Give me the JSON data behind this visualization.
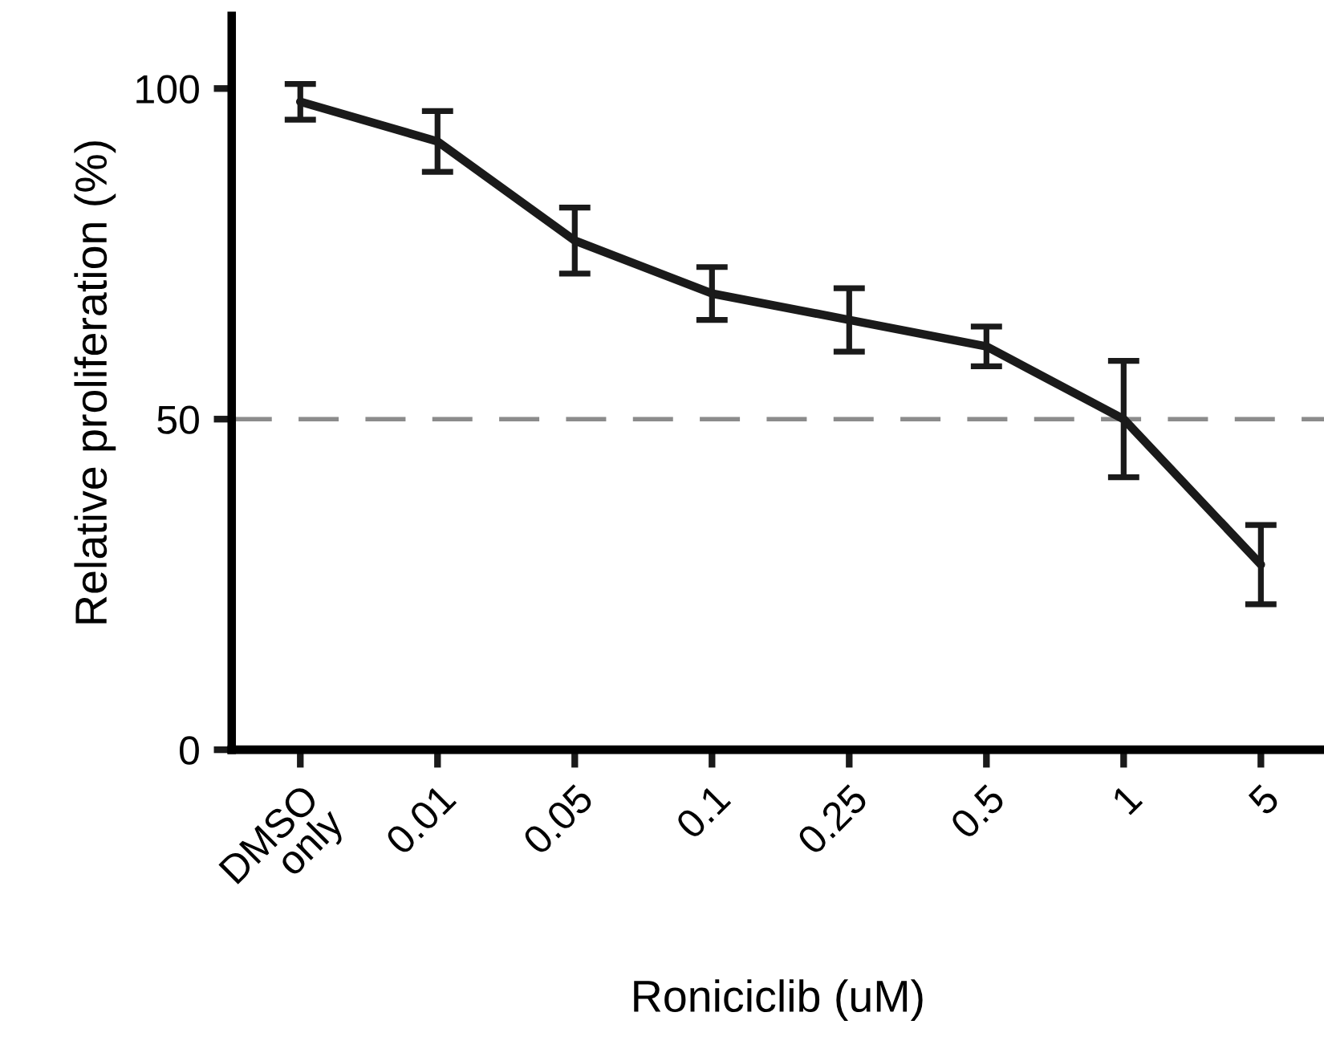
{
  "chart_data": {
    "type": "line",
    "xlabel": "Roniciclib (uM)",
    "ylabel": "Relative proliferation (%)",
    "categories": [
      "DMSO\nonly",
      "0.01",
      "0.05",
      "0.1",
      "0.25",
      "0.5",
      "1",
      "5"
    ],
    "series": [
      {
        "color": "#1a1a1a",
        "values": [
          98,
          92,
          77,
          69,
          65,
          61,
          50,
          28
        ],
        "errors": [
          2.7,
          4.6,
          5,
          4,
          4.8,
          3,
          8.8,
          6
        ]
      }
    ],
    "ylim": [
      0,
      111
    ],
    "yticks": [
      0,
      50,
      100
    ],
    "ref_lines": [
      {
        "axis": "y",
        "value": 50,
        "color": "#8c8c8c",
        "line_style": "dashed"
      }
    ],
    "grid": false,
    "marker": "none",
    "line_style": "solid"
  }
}
